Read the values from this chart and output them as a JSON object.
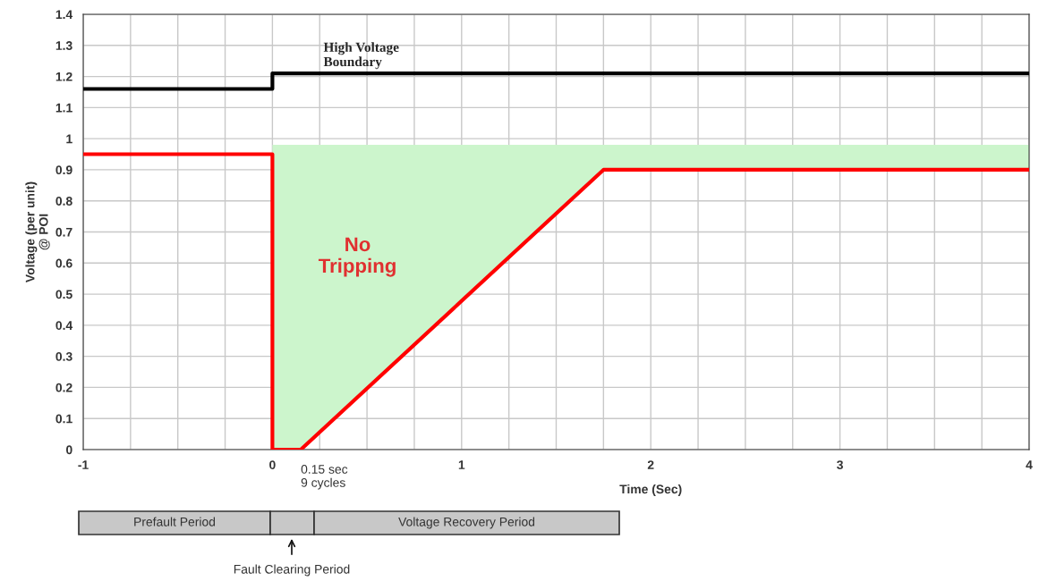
{
  "chart_data": {
    "type": "line",
    "xlabel": "Time (Sec)",
    "ylabel": "Voltage (per unit)\n@ POI",
    "series": [
      {
        "type": "step",
        "color": "#000000",
        "x": [
          -1,
          0,
          4
        ],
        "values": [
          1.16,
          1.21,
          1.21
        ]
      },
      {
        "color": "#ff0000",
        "x": [
          -1,
          0,
          0,
          0.15,
          1.75,
          4
        ],
        "values": [
          0.95,
          0.95,
          0,
          0,
          0.9,
          0.9
        ],
        "lower": [
          null,
          null,
          0,
          0,
          0.9,
          0.9
        ],
        "upper": [
          null,
          null,
          0.98,
          0.98,
          0.98,
          0.98
        ]
      }
    ],
    "xlim": [
      -1,
      4
    ],
    "xticks": [
      -1,
      {
        "value": -0.75,
        "label": null
      },
      {
        "value": -0.5,
        "label": null
      },
      {
        "value": -0.25,
        "label": null
      },
      0,
      {
        "value": 0.25,
        "label": null
      },
      {
        "value": 0.5,
        "label": null
      },
      {
        "value": 0.75,
        "label": null
      },
      1,
      {
        "value": 1.25,
        "label": null
      },
      {
        "value": 1.5,
        "label": null
      },
      {
        "value": 1.75,
        "label": null
      },
      2,
      {
        "value": 2.25,
        "label": null
      },
      {
        "value": 2.5,
        "label": null
      },
      {
        "value": 2.75,
        "label": null
      },
      3,
      {
        "value": 3.25,
        "label": null
      },
      {
        "value": 3.5,
        "label": null
      },
      {
        "value": 3.75,
        "label": null
      },
      4
    ],
    "ylim": [
      0,
      1.4
    ],
    "yticks": [
      0,
      0.1,
      0.2,
      0.3,
      0.4,
      0.5,
      0.6,
      0.7,
      0.8,
      0.9,
      1,
      1.1,
      1.2,
      1.3,
      1.4
    ],
    "grid": true,
    "annotations": [
      "High Voltage\nBoundary",
      "No\nTripping",
      {
        "text": "0.15 sec\n9 cycles",
        "x": 0.15,
        "y": 0
      },
      "Prefault Period",
      "Fault Clearing Period",
      "Voltage Recovery Period"
    ]
  }
}
